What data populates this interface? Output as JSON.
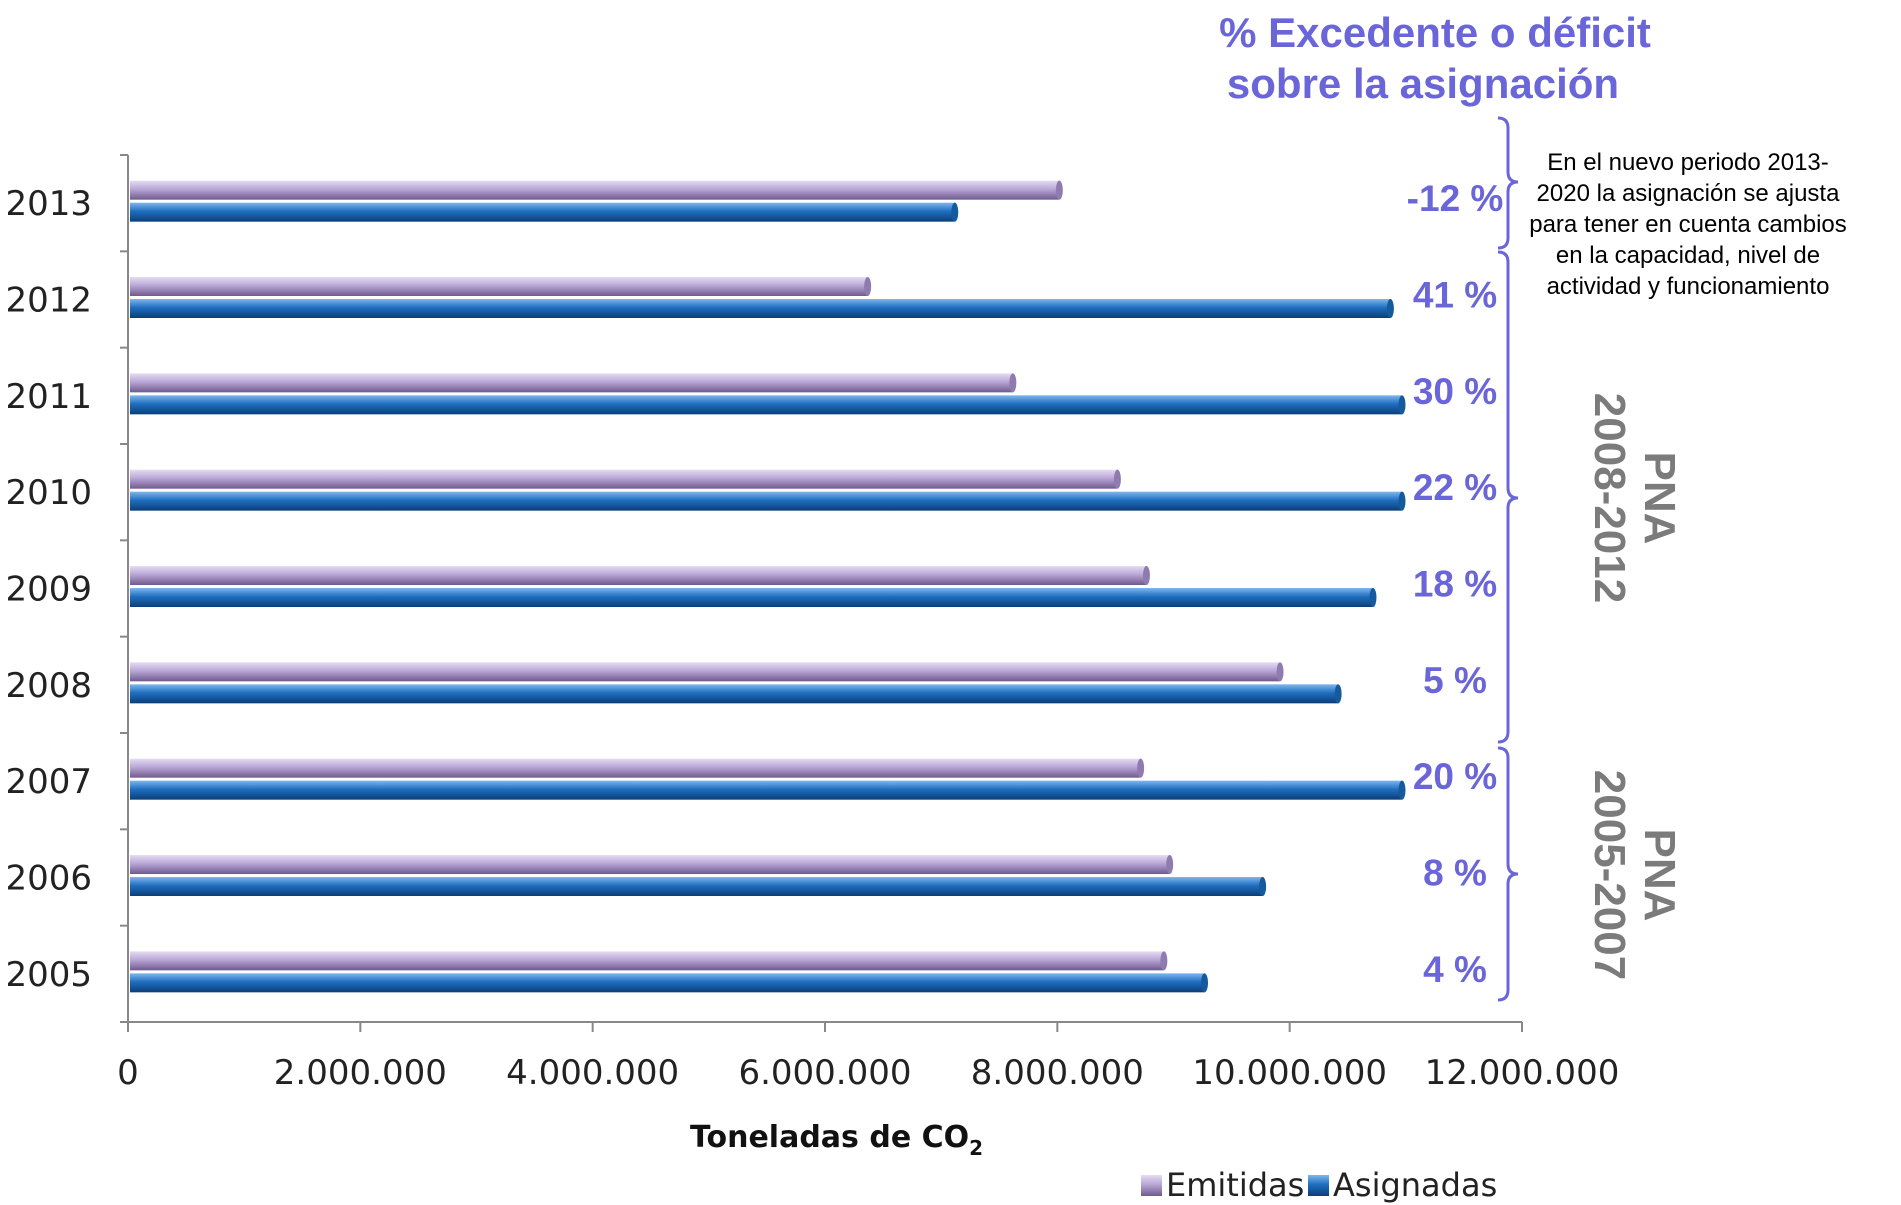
{
  "chart_data": {
    "type": "bar",
    "orientation": "horizontal",
    "categories": [
      "2013",
      "2012",
      "2011",
      "2010",
      "2009",
      "2008",
      "2007",
      "2006",
      "2005"
    ],
    "series": [
      {
        "name": "Emitidas",
        "color": "#b8a6d4",
        "values": [
          8000000,
          6350000,
          7600000,
          8500000,
          8750000,
          9900000,
          8700000,
          8950000,
          8900000
        ]
      },
      {
        "name": "Asignadas",
        "color": "#1f6fc0",
        "values": [
          7100000,
          10850000,
          10950000,
          10950000,
          10700000,
          10400000,
          10950000,
          9750000,
          9250000
        ]
      }
    ],
    "xlim": [
      0,
      12000000
    ],
    "xticks": [
      "0",
      "2.000.000",
      "4.000.000",
      "6.000.000",
      "8.000.000",
      "10.000.000",
      "12.000.000"
    ],
    "xtick_values": [
      0,
      2000000,
      4000000,
      6000000,
      8000000,
      10000000,
      12000000
    ],
    "xlabel_main": "Toneladas de CO",
    "xlabel_sub": "2",
    "legend_position": "bottom-right",
    "annotations": {
      "percent_title_line1": "% Excedente o déficit",
      "percent_title_line2": "sobre la asignación",
      "percentages": [
        "-12 %",
        "41 %",
        "30 %",
        "22 %",
        "18 %",
        "5 %",
        "20 %",
        "8 %",
        "4 %"
      ],
      "note_lines": [
        "En el nuevo periodo 2013-",
        "2020 la asignación se ajusta",
        "para tener en cuenta cambios",
        "en la capacidad, nivel de",
        "actividad y funcionamiento"
      ],
      "period_1": {
        "line1": "PNA",
        "line2": "2008-2012"
      },
      "period_2": {
        "line1": "PNA",
        "line2": "2005-2007"
      }
    },
    "accent_color": "#6a65d8",
    "period_label_color": "#7b7b7b"
  }
}
